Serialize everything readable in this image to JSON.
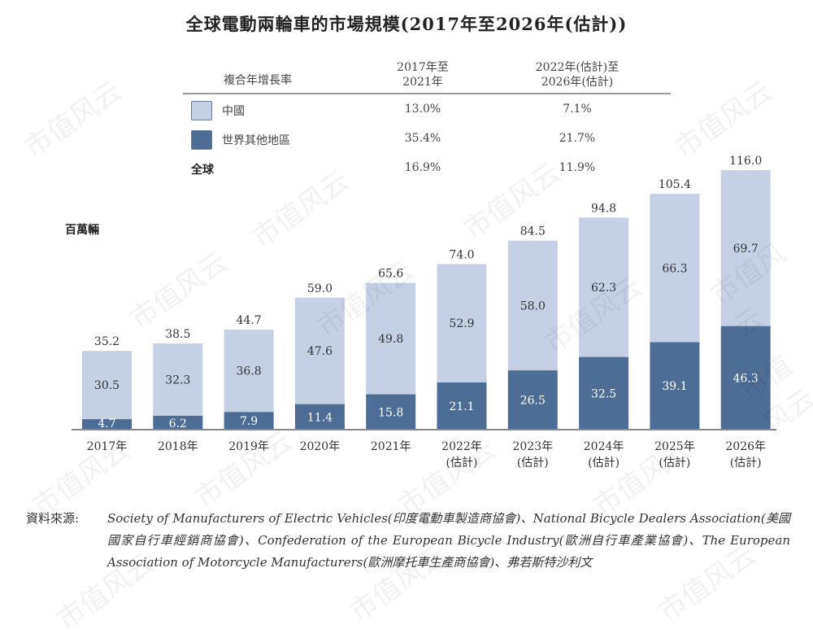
{
  "title": "全球電動兩輪車的市場規模(2017年至2026年(估計))",
  "cagr_table": {
    "header_label": "複合年增長率",
    "col1_line1": "2017年至",
    "col1_line2": "2021年",
    "col2_line1": "2022年(估計)至",
    "col2_line2": "2026年(估計)",
    "rows": [
      {
        "name": "中國",
        "col1": "13.0%",
        "col2": "7.1%",
        "swatch": "#c5d0e4"
      },
      {
        "name": "世界其他地區",
        "col1": "35.4%",
        "col2": "21.7%",
        "swatch": "#4d6d96"
      },
      {
        "name": "全球",
        "col1": "16.9%",
        "col2": "11.9%"
      }
    ]
  },
  "unit_label": "百萬輛",
  "colors": {
    "china": "#c5d0e4",
    "rest": "#4d6d96",
    "axis": "#888888"
  },
  "chart_data": {
    "type": "bar",
    "stacked": true,
    "title": "全球電動兩輪車的市場規模(2017年至2026年(估計))",
    "ylabel": "百萬輛",
    "xlabel": "",
    "categories": [
      "2017年",
      "2018年",
      "2019年",
      "2020年",
      "2021年",
      "2022年",
      "2023年",
      "2024年",
      "2025年",
      "2026年"
    ],
    "category_sublabels": [
      "",
      "",
      "",
      "",
      "",
      "(估計)",
      "(估計)",
      "(估計)",
      "(估計)",
      "(估計)"
    ],
    "series": [
      {
        "name": "世界其他地區",
        "values": [
          4.7,
          6.2,
          7.9,
          11.4,
          15.8,
          21.1,
          26.5,
          32.5,
          39.1,
          46.3
        ]
      },
      {
        "name": "中國",
        "values": [
          30.5,
          32.3,
          36.8,
          47.6,
          49.8,
          52.9,
          58.0,
          62.3,
          66.3,
          69.7
        ]
      }
    ],
    "totals": [
      "35.2",
      "38.5",
      "44.7",
      "59.0",
      "65.6",
      "74.0",
      "84.5",
      "94.8",
      "105.4",
      "116.0"
    ],
    "ylim": [
      0,
      120
    ],
    "grid": false,
    "legend": "top-left"
  },
  "source": {
    "label": "資料來源:",
    "text": "Society of Manufacturers of Electric Vehicles(印度電動車製造商協會)、National Bicycle Dealers Association(美國國家自行車經銷商協會)、Confederation of the European Bicycle Industry(歐洲自行車產業協會)、The European Association of Motorcycle Manufacturers(歐洲摩托車生產商協會)、弗若斯特沙利文"
  },
  "watermark": "市值风云"
}
